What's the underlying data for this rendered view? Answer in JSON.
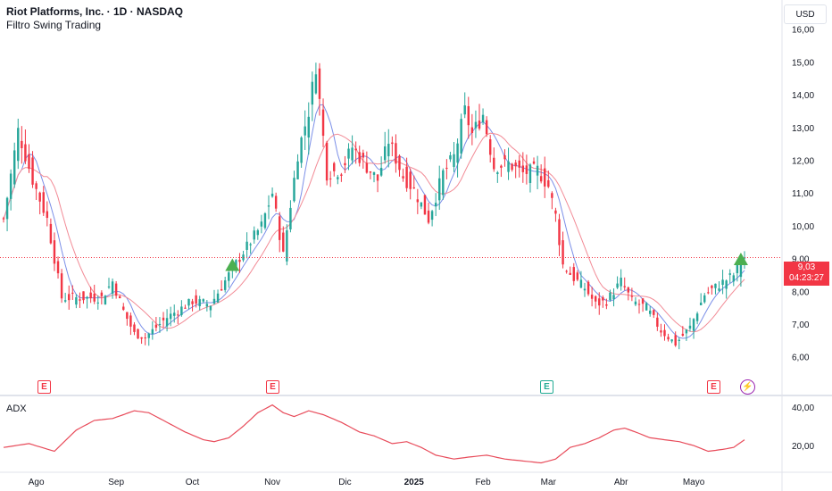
{
  "header": {
    "title": "Riot Platforms, Inc. · 1D · NASDAQ",
    "indicator": "Filtro Swing Trading"
  },
  "currency": "USD",
  "last_price": {
    "value": "9,03",
    "countdown": "04:23:27"
  },
  "adx_label": "ADX",
  "events": [
    {
      "type": "earnings",
      "label": "E",
      "color": "red"
    },
    {
      "type": "earnings",
      "label": "E",
      "color": "red"
    },
    {
      "type": "earnings",
      "label": "E",
      "color": "green"
    },
    {
      "type": "earnings",
      "label": "E",
      "color": "red"
    },
    {
      "type": "split",
      "label": "⚡",
      "color": "purple"
    }
  ],
  "colors": {
    "up": "#26a69a",
    "down": "#f23645",
    "ma_fast": "#7b8fe8",
    "ma_slow": "#f28b96",
    "adx": "#e84b5a",
    "signal": "#4caf50"
  },
  "chart_data": [
    {
      "type": "candlestick",
      "title": "Riot Platforms, Inc. · 1D · NASDAQ",
      "x_ticks": [
        "Ago",
        "Sep",
        "Oct",
        "Nov",
        "Dic",
        "2025",
        "Feb",
        "Mar",
        "Abr",
        "Mayo"
      ],
      "y_ticks": [
        "6,00",
        "7,00",
        "8,00",
        "9,00",
        "10,00",
        "11,00",
        "12,00",
        "13,00",
        "14,00",
        "15,00",
        "16,00"
      ],
      "ylim": [
        5.5,
        16.4
      ],
      "anchors": [
        [
          0,
          10.2
        ],
        [
          4,
          12.9
        ],
        [
          8,
          11.4
        ],
        [
          12,
          10.2
        ],
        [
          16,
          7.8
        ],
        [
          20,
          7.8
        ],
        [
          27,
          7.8
        ],
        [
          30,
          8.3
        ],
        [
          33,
          7.4
        ],
        [
          36,
          6.7
        ],
        [
          39,
          6.6
        ],
        [
          45,
          7.2
        ],
        [
          52,
          7.7
        ],
        [
          57,
          7.6
        ],
        [
          62,
          8.5
        ],
        [
          66,
          9.2
        ],
        [
          71,
          10.0
        ],
        [
          74,
          11.0
        ],
        [
          77,
          9.1
        ],
        [
          81,
          12.2
        ],
        [
          84,
          13.5
        ],
        [
          86,
          14.9
        ],
        [
          89,
          11.6
        ],
        [
          93,
          11.7
        ],
        [
          96,
          12.4
        ],
        [
          100,
          11.8
        ],
        [
          103,
          11.4
        ],
        [
          106,
          12.6
        ],
        [
          110,
          11.5
        ],
        [
          113,
          11.1
        ],
        [
          117,
          10.2
        ],
        [
          121,
          11.6
        ],
        [
          124,
          12.1
        ],
        [
          127,
          13.5
        ],
        [
          129,
          12.8
        ],
        [
          132,
          13.4
        ],
        [
          135,
          11.8
        ],
        [
          139,
          11.9
        ],
        [
          143,
          11.6
        ],
        [
          147,
          11.7
        ],
        [
          150,
          11.2
        ],
        [
          152,
          10.3
        ],
        [
          154,
          8.8
        ],
        [
          157,
          8.4
        ],
        [
          160,
          8.1
        ],
        [
          163,
          7.6
        ],
        [
          166,
          7.7
        ],
        [
          170,
          8.3
        ],
        [
          173,
          7.7
        ],
        [
          177,
          7.5
        ],
        [
          181,
          6.8
        ],
        [
          185,
          6.4
        ],
        [
          189,
          6.9
        ],
        [
          193,
          7.9
        ],
        [
          197,
          8.2
        ],
        [
          201,
          8.5
        ],
        [
          204,
          9.03
        ]
      ],
      "signals": [
        {
          "date_index": 63,
          "type": "buy"
        },
        {
          "date_index": 203,
          "type": "buy"
        }
      ],
      "last": 9.03
    },
    {
      "type": "line",
      "series": [
        {
          "name": "ADX"
        }
      ],
      "y_ticks": [
        "20,00",
        "40,00"
      ],
      "ylim": [
        8,
        45
      ],
      "anchors": [
        [
          0,
          19
        ],
        [
          7,
          21
        ],
        [
          14,
          17
        ],
        [
          20,
          28
        ],
        [
          25,
          33
        ],
        [
          30,
          34
        ],
        [
          36,
          38
        ],
        [
          40,
          37
        ],
        [
          45,
          32
        ],
        [
          50,
          27
        ],
        [
          55,
          23
        ],
        [
          58,
          22
        ],
        [
          62,
          24
        ],
        [
          66,
          30
        ],
        [
          70,
          37
        ],
        [
          74,
          41
        ],
        [
          77,
          37
        ],
        [
          80,
          35
        ],
        [
          84,
          38
        ],
        [
          88,
          36
        ],
        [
          93,
          32
        ],
        [
          98,
          27
        ],
        [
          102,
          25
        ],
        [
          107,
          21
        ],
        [
          111,
          22
        ],
        [
          115,
          19
        ],
        [
          119,
          15
        ],
        [
          124,
          13
        ],
        [
          128,
          14
        ],
        [
          133,
          15
        ],
        [
          138,
          13
        ],
        [
          143,
          12
        ],
        [
          148,
          11
        ],
        [
          152,
          13
        ],
        [
          156,
          19
        ],
        [
          160,
          21
        ],
        [
          164,
          24
        ],
        [
          168,
          28
        ],
        [
          171,
          29
        ],
        [
          174,
          27
        ],
        [
          178,
          24
        ],
        [
          182,
          23
        ],
        [
          186,
          22
        ],
        [
          190,
          20
        ],
        [
          194,
          17
        ],
        [
          198,
          18
        ],
        [
          201,
          19
        ],
        [
          204,
          23
        ]
      ]
    }
  ]
}
